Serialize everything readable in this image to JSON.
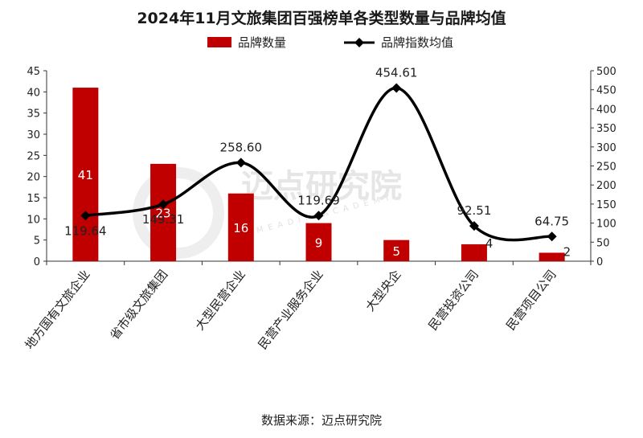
{
  "title": "2024年11月文旅集团百强榜单各类型数量与品牌均值",
  "legend": {
    "bar_series": "品牌数量",
    "line_series": "品牌指数均值"
  },
  "source": "数据来源：迈点研究院",
  "watermark": {
    "text": "迈点研究院",
    "subtext": "MEADIN ACADEMY"
  },
  "colors": {
    "bar": "#c00000",
    "line": "#000000"
  },
  "chart_data": {
    "type": "bar",
    "title": "2024年11月文旅集团百强榜单各类型数量与品牌均值",
    "categories": [
      "地方国有文旅企业",
      "省市级文旅集团",
      "大型民营企业",
      "民营产业服务企业",
      "大型央企",
      "民营投资公司",
      "民营项目公司"
    ],
    "series": [
      {
        "name": "品牌数量",
        "type": "bar",
        "axis": "left",
        "values": [
          41,
          23,
          16,
          9,
          5,
          4,
          2
        ],
        "labels": [
          "41",
          "23",
          "16",
          "9",
          "5",
          "4",
          "2"
        ]
      },
      {
        "name": "品牌指数均值",
        "type": "line",
        "axis": "right",
        "smooth": true,
        "marker": "diamond",
        "values": [
          119.64,
          149.31,
          258.6,
          119.69,
          454.61,
          92.51,
          64.75
        ],
        "labels": [
          "119.64",
          "149.31",
          "258.60",
          "119.69",
          "454.61",
          "92.51",
          "64.75"
        ]
      }
    ],
    "y_left": {
      "min": 0,
      "max": 45,
      "step": 5,
      "ticks": [
        "0",
        "5",
        "10",
        "15",
        "20",
        "25",
        "30",
        "35",
        "40",
        "45"
      ]
    },
    "y_right": {
      "min": 0,
      "max": 500,
      "step": 50,
      "ticks": [
        "0",
        "50",
        "100",
        "150",
        "200",
        "250",
        "300",
        "350",
        "400",
        "450",
        "500"
      ]
    },
    "grid": false,
    "legend_position": "top"
  }
}
